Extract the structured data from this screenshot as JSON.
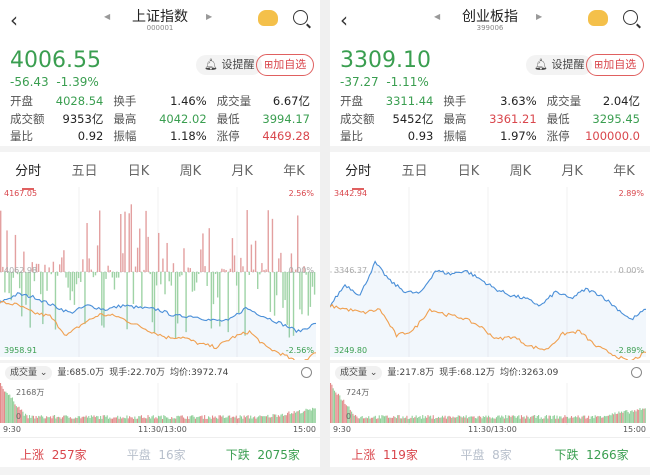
{
  "colors": {
    "up": "#d9464c",
    "down": "#3a9e50",
    "price_line": "#4a8fd8",
    "avg_line": "#f0a050"
  },
  "panels": [
    {
      "title": "上证指数",
      "code": "000001",
      "price": "4006.55",
      "change": "-56.43",
      "change_pct": "-1.39%",
      "remind": "设提醒",
      "add_fav": "加自选",
      "stats": [
        [
          [
            "开盘",
            "4028.54",
            "g"
          ],
          [
            "换手",
            "1.46%",
            "k"
          ],
          [
            "成交量",
            "6.67亿",
            "k"
          ]
        ],
        [
          [
            "成交额",
            "9353亿",
            "k"
          ],
          [
            "最高",
            "4042.02",
            "g"
          ],
          [
            "最低",
            "3994.17",
            "g"
          ]
        ],
        [
          [
            "量比",
            "0.92",
            "k"
          ],
          [
            "振幅",
            "1.18%",
            "k"
          ],
          [
            "涨停",
            "4469.28",
            "r"
          ]
        ]
      ],
      "tabs": [
        "分时",
        "五日",
        "日K",
        "周K",
        "月K",
        "年K"
      ],
      "chart": {
        "high": "4167.05",
        "mid": "4062.98",
        "low": "3958.91",
        "high_pct": "2.56%",
        "mid_pct": "0.00%",
        "low_pct": "-2.56%",
        "ymax": 4167.05,
        "ymin": 3958.91,
        "ymid": 4062.98,
        "breadth_bars": true,
        "price": [
          4026,
          4036,
          4032,
          4022,
          4013,
          4022,
          4017,
          4022,
          4019,
          4017,
          4009,
          4009,
          4004,
          4003,
          4019,
          4009,
          4000,
          3990,
          4000
        ],
        "avg": [
          4026,
          4023,
          4013,
          4009,
          3985,
          4000,
          4011,
          4009,
          4000,
          3991,
          3983,
          3983,
          3975,
          3971,
          3983,
          3990,
          3971,
          3962,
          3951,
          3964
        ]
      },
      "volume": {
        "selector": "成交量",
        "vol": "量:685.0万",
        "now": "现手:22.70万",
        "avg_price": "均价:3972.74",
        "max": "2168万",
        "zero": "0"
      },
      "times": [
        "9:30",
        "11:30/13:00",
        "15:00"
      ],
      "breadth": {
        "up_label": "上涨",
        "up": "257家",
        "flat_label": "平盘",
        "flat": "16家",
        "down_label": "下跌",
        "down": "2075家"
      }
    },
    {
      "title": "创业板指",
      "code": "399006",
      "price": "3309.10",
      "change": "-37.27",
      "change_pct": "-1.11%",
      "remind": "设提醒",
      "add_fav": "加自选",
      "stats": [
        [
          [
            "开盘",
            "3311.44",
            "g"
          ],
          [
            "换手",
            "3.63%",
            "k"
          ],
          [
            "成交量",
            "2.04亿",
            "k"
          ]
        ],
        [
          [
            "成交额",
            "5452亿",
            "k"
          ],
          [
            "最高",
            "3361.21",
            "r"
          ],
          [
            "最低",
            "3295.45",
            "g"
          ]
        ],
        [
          [
            "量比",
            "0.93",
            "k"
          ],
          [
            "振幅",
            "1.97%",
            "k"
          ],
          [
            "涨停",
            "100000.0",
            "r"
          ]
        ]
      ],
      "tabs": [
        "分时",
        "五日",
        "日K",
        "周K",
        "月K",
        "年K"
      ],
      "chart": {
        "high": "3442.94",
        "mid": "3346.37",
        "low": "3249.80",
        "high_pct": "2.89%",
        "mid_pct": "0.00%",
        "low_pct": "-2.89%",
        "ymax": 3442.94,
        "ymin": 3249.8,
        "ymid": 3346.37,
        "breadth_bars": false,
        "price": [
          3308,
          3332,
          3320,
          3357,
          3336,
          3324,
          3322,
          3348,
          3344,
          3348,
          3338,
          3327,
          3320,
          3316,
          3308,
          3324,
          3316,
          3327,
          3320,
          3306,
          3292,
          3304
        ],
        "avg": [
          3308,
          3304,
          3300,
          3304,
          3274,
          3280,
          3304,
          3298,
          3294,
          3285,
          3270,
          3273,
          3262,
          3258,
          3276,
          3279,
          3262,
          3253,
          3244,
          3255
        ]
      },
      "volume": {
        "selector": "成交量",
        "vol": "量:217.8万",
        "now": "现手:68.12万",
        "avg_price": "均价:3263.09",
        "max": "724万",
        "zero": "0"
      },
      "times": [
        "9:30",
        "11:30/13:00",
        "15:00"
      ],
      "breadth": {
        "up_label": "上涨",
        "up": "119家",
        "flat_label": "平盘",
        "flat": "8家",
        "down_label": "下跌",
        "down": "1266家"
      }
    }
  ]
}
